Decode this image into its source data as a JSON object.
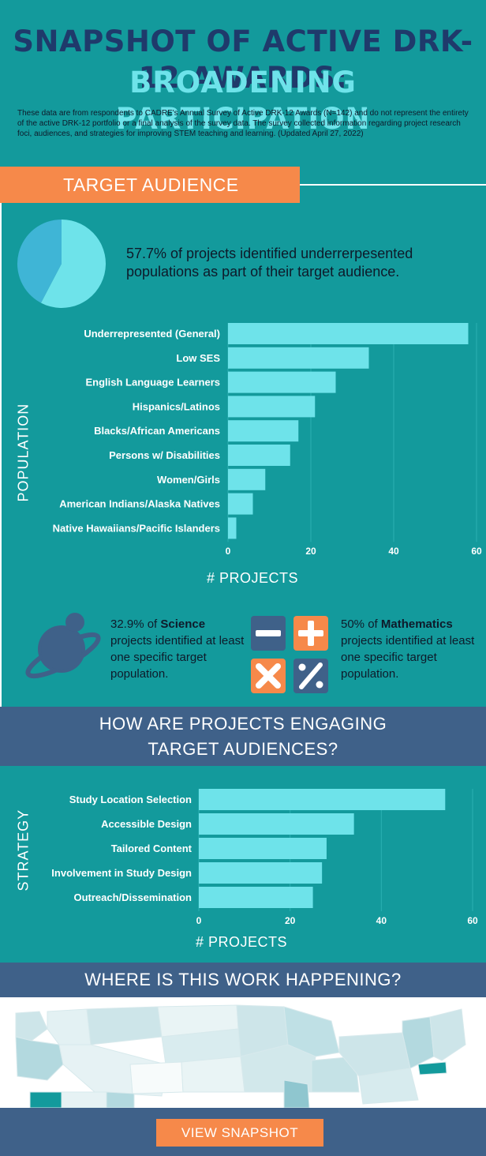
{
  "header": {
    "title": "SNAPSHOT OF ACTIVE DRK-12 AWARDS:",
    "subtitle": "BROADENING PARTICIPATION",
    "intro": "These data are from respondents to CADRE's Annual Survey of Active DRK-12 Awards (N=142) and do not represent the entirety of the active DRK-12 portfolio or a final analysis of the survey data. The survey collected information regarding project research foci, audiences, and strategies for improving STEM teaching and learning. (Updated April 27, 2022)"
  },
  "target_audience": {
    "banner": "TARGET AUDIENCE",
    "pie_text": "57.7% of projects identified underrerpesented populations as part of their target audience."
  },
  "stats": {
    "science": {
      "pre": "32.9% of ",
      "bold": "Science",
      "post": " projects identified at least one specific target population."
    },
    "math": {
      "pre": "50% of ",
      "bold": "Mathematics",
      "post": " projects identified at least one specific target population."
    }
  },
  "engage_band": {
    "line1": "HOW ARE PROJECTS ENGAGING",
    "line2": "TARGET AUDIENCES?"
  },
  "where_band": "WHERE IS THIS WORK HAPPENING?",
  "view_button": "VIEW SNAPSHOT",
  "colors": {
    "bar": "#6ee3ea",
    "bg": "#139a9c",
    "navy": "#1f3a6b",
    "orange": "#f6894a",
    "band": "#3f6189",
    "pie_minor": "#3fb5d6"
  },
  "icons": [
    "planet-icon",
    "minus-icon",
    "plus-icon",
    "times-icon",
    "percent-icon"
  ],
  "chart_data": [
    {
      "type": "pie",
      "labels": [
        "",
        ""
      ],
      "values": [
        57.7,
        42.3
      ]
    },
    {
      "type": "bar",
      "orientation": "horizontal",
      "ylabel": "POPULATION",
      "xlabel": "# PROJECTS",
      "xlim": [
        0,
        60
      ],
      "xticks": [
        0,
        20,
        40,
        60
      ],
      "grid": true,
      "categories": [
        "Underrepresented (General)",
        "Low SES",
        "English Language Learners",
        "Hispanics/Latinos",
        "Blacks/African Americans",
        "Persons w/ Disabilities",
        "Women/Girls",
        "American Indians/Alaska Natives",
        "Native Hawaiians/Pacific Islanders"
      ],
      "values": [
        58,
        34,
        26,
        21,
        17,
        15,
        9,
        6,
        2
      ]
    },
    {
      "type": "bar",
      "orientation": "horizontal",
      "ylabel": "STRATEGY",
      "xlabel": "# PROJECTS",
      "xlim": [
        0,
        60
      ],
      "xticks": [
        0,
        20,
        40,
        60
      ],
      "grid": true,
      "categories": [
        "Study Location Selection",
        "Accessible Design",
        "Tailored Content",
        "Involvement in Study Design",
        "Outreach/Dissemination"
      ],
      "values": [
        54,
        34,
        28,
        27,
        25
      ]
    }
  ]
}
